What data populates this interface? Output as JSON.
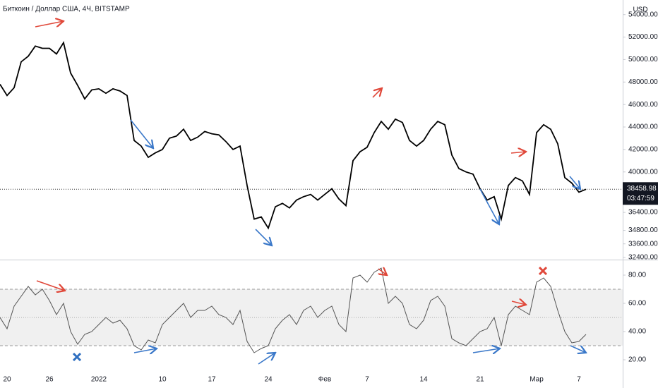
{
  "chart_data": [
    {
      "type": "line",
      "title": "Биткоин / Доллар США, 4Ч, BITSTAMP",
      "currency": "USD",
      "color": "#000000",
      "values": [
        47800,
        46800,
        47500,
        49800,
        50300,
        51200,
        51000,
        51000,
        50500,
        51500,
        48800,
        47700,
        46500,
        47300,
        47400,
        47000,
        47400,
        47200,
        46800,
        42800,
        42300,
        41300,
        41700,
        42000,
        43000,
        43200,
        43800,
        42800,
        43100,
        43600,
        43400,
        43300,
        42700,
        42000,
        42300,
        38800,
        35800,
        36000,
        35000,
        36900,
        37200,
        36800,
        37500,
        37800,
        38000,
        37500,
        38000,
        38500,
        37600,
        37000,
        41000,
        41800,
        42200,
        43500,
        44500,
        43800,
        44700,
        44400,
        42800,
        42300,
        42800,
        43800,
        44500,
        44200,
        41500,
        40300,
        40000,
        39800,
        38500,
        37500,
        37800,
        35800,
        38800,
        39500,
        39200,
        38000,
        43500,
        44200,
        43800,
        42500,
        39500,
        39000,
        38200,
        38458.98
      ],
      "ylim": [
        32200,
        55300
      ],
      "yticks": [
        {
          "value": 54000,
          "label": "54000.00"
        },
        {
          "value": 52000,
          "label": "52000.00"
        },
        {
          "value": 50000,
          "label": "50000.00"
        },
        {
          "value": 48000,
          "label": "48000.00"
        },
        {
          "value": 46000,
          "label": "46000.00"
        },
        {
          "value": 44000,
          "label": "44000.00"
        },
        {
          "value": 42000,
          "label": "42000.00"
        },
        {
          "value": 40000,
          "label": "40000.00"
        },
        {
          "value": 36400,
          "label": "36400.00"
        },
        {
          "value": 34800,
          "label": "34800.00"
        },
        {
          "value": 33600,
          "label": "33600.00"
        },
        {
          "value": 32400,
          "label": "32400.00"
        }
      ],
      "last_price": 38458.98,
      "countdown": "03:47:59"
    },
    {
      "type": "line",
      "color": "#555555",
      "categories": [
        null,
        "20",
        null,
        null,
        null,
        null,
        null,
        "26",
        null,
        null,
        null,
        null,
        null,
        null,
        "2022",
        null,
        null,
        null,
        null,
        null,
        null,
        null,
        null,
        "10",
        null,
        null,
        null,
        null,
        null,
        null,
        "17",
        null,
        null,
        null,
        null,
        null,
        null,
        null,
        "24",
        null,
        null,
        null,
        null,
        null,
        null,
        null,
        "Фев",
        null,
        null,
        null,
        null,
        null,
        "7",
        null,
        null,
        null,
        null,
        null,
        null,
        null,
        "14",
        null,
        null,
        null,
        null,
        null,
        null,
        null,
        "21",
        null,
        null,
        null,
        null,
        null,
        null,
        null,
        "Мар",
        null,
        null,
        null,
        null,
        null,
        "7",
        null
      ],
      "values": [
        50,
        42,
        58,
        65,
        72,
        66,
        70,
        62,
        52,
        60,
        40,
        31,
        38,
        40,
        45,
        50,
        46,
        48,
        42,
        30,
        27,
        34,
        32,
        45,
        50,
        55,
        60,
        50,
        55,
        55,
        58,
        52,
        50,
        45,
        55,
        33,
        25,
        28,
        30,
        42,
        48,
        52,
        45,
        55,
        58,
        50,
        55,
        58,
        45,
        40,
        78,
        80,
        75,
        82,
        85,
        60,
        65,
        60,
        45,
        42,
        48,
        62,
        65,
        58,
        35,
        32,
        30,
        35,
        40,
        42,
        50,
        30,
        52,
        58,
        55,
        52,
        75,
        78,
        72,
        55,
        40,
        32,
        33,
        38
      ],
      "ylim": [
        10,
        90
      ],
      "yticks": [
        {
          "value": 20,
          "label": "20.00"
        },
        {
          "value": 40,
          "label": "40.00"
        },
        {
          "value": 60,
          "label": "60.00"
        },
        {
          "value": 80,
          "label": "80.00"
        }
      ],
      "band": [
        30,
        70
      ],
      "midline": 50
    }
  ]
}
